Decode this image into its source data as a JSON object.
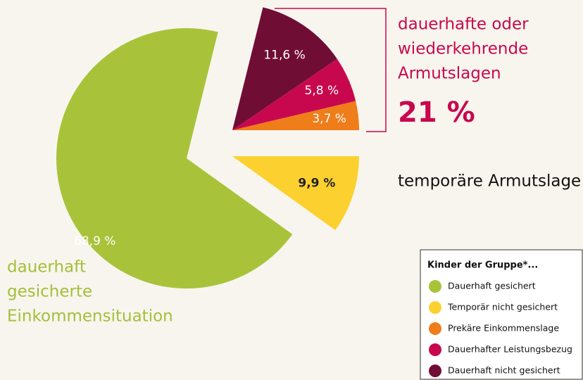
{
  "chart_data": {
    "type": "pie",
    "categories": [
      "Dauerhaft gesichert",
      "Temporär nicht gesichert",
      "Prekäre Einkommenslage",
      "Dauerhafter Leistungsbezug",
      "Dauerhaft nicht gesichert"
    ],
    "values": [
      68.9,
      9.9,
      3.7,
      5.8,
      11.6
    ],
    "value_labels": [
      "68,9 %",
      "9,9 %",
      "3,7 %",
      "5,8 %",
      "11,6 %"
    ],
    "colors": [
      "#a8c33a",
      "#fcd02f",
      "#ee7d1a",
      "#c8084e",
      "#700d35"
    ],
    "legend_title": "Kinder der Gruppe*...",
    "annotations": {
      "poverty_group": [
        "dauerhafte oder",
        "wiederkehrende",
        "Armutslagen"
      ],
      "poverty_total": "21 %",
      "temporary": "temporäre Armutslage",
      "secure": [
        "dauerhaft",
        "gesicherte",
        "Einkommensituation"
      ]
    }
  }
}
